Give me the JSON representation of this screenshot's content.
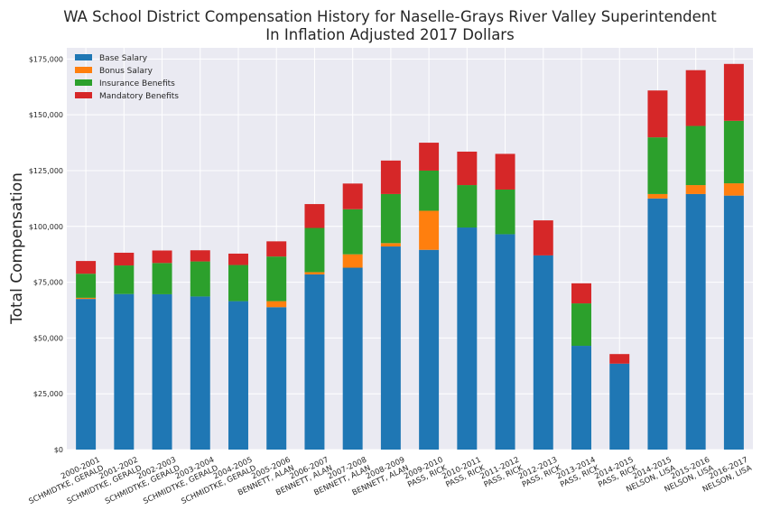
{
  "title_line1": "WA School District Compensation History for Naselle-Grays River Valley Superintendent",
  "title_line2": "In Inflation Adjusted 2017 Dollars",
  "chart_data": {
    "type": "bar",
    "stacked": true,
    "title": "WA School District Compensation History for Naselle-Grays River Valley Superintendent In Inflation Adjusted 2017 Dollars",
    "xlabel": "",
    "ylabel": "Total Compensation",
    "ylim": [
      0,
      180000
    ],
    "yticks": [
      0,
      25000,
      50000,
      75000,
      100000,
      125000,
      150000,
      175000
    ],
    "ytick_labels": [
      "$0",
      "$25,000",
      "$50,000",
      "$75,000",
      "$100,000",
      "$125,000",
      "$150,000",
      "$175,000"
    ],
    "grid": true,
    "legend_position": "top-left",
    "categories": [
      [
        "2000-2001",
        "SCHMIDTKE, GERALD"
      ],
      [
        "2001-2002",
        "SCHMIDTKE, GERALD"
      ],
      [
        "2002-2003",
        "SCHMIDTKE, GERALD"
      ],
      [
        "2003-2004",
        "SCHMIDTKE, GERALD"
      ],
      [
        "2004-2005",
        "SCHMIDTKE, GERALD"
      ],
      [
        "2005-2006",
        "BENNETT, ALAN"
      ],
      [
        "2006-2007",
        "BENNETT, ALAN"
      ],
      [
        "2007-2008",
        "BENNETT, ALAN"
      ],
      [
        "2008-2009",
        "BENNETT, ALAN"
      ],
      [
        "2009-2010",
        "PASS, RICK"
      ],
      [
        "2010-2011",
        "PASS, RICK"
      ],
      [
        "2011-2012",
        "PASS, RICK"
      ],
      [
        "2012-2013",
        "PASS, RICK"
      ],
      [
        "2013-2014",
        "PASS, RICK"
      ],
      [
        "2014-2015",
        "PASS, RICK"
      ],
      [
        "2014-2015",
        "NELSON, LISA"
      ],
      [
        "2015-2016",
        "NELSON, LISA"
      ],
      [
        "2016-2017",
        "NELSON, LISA"
      ]
    ],
    "series": [
      {
        "name": "Base Salary",
        "color": "#1f77b4",
        "values": [
          67500,
          69700,
          69600,
          68600,
          66500,
          63800,
          78500,
          81500,
          91000,
          89500,
          99500,
          96500,
          87000,
          46500,
          38500,
          112500,
          114500,
          113800
        ]
      },
      {
        "name": "Bonus Salary",
        "color": "#ff7f0e",
        "values": [
          500,
          0,
          0,
          0,
          0,
          2700,
          1000,
          6000,
          1500,
          17500,
          0,
          0,
          0,
          0,
          0,
          2000,
          4000,
          5500
        ]
      },
      {
        "name": "Insurance Benefits",
        "color": "#2ca02c",
        "values": [
          10800,
          12800,
          14000,
          15700,
          16200,
          20000,
          19800,
          20200,
          22000,
          18000,
          19000,
          20000,
          0,
          19000,
          0,
          25400,
          26500,
          28000
        ]
      },
      {
        "name": "Mandatory Benefits",
        "color": "#d62728",
        "values": [
          5700,
          5700,
          5600,
          5000,
          5100,
          6800,
          10700,
          11500,
          15000,
          12500,
          15000,
          16000,
          15700,
          9000,
          4300,
          21000,
          25000,
          25500
        ]
      }
    ]
  }
}
